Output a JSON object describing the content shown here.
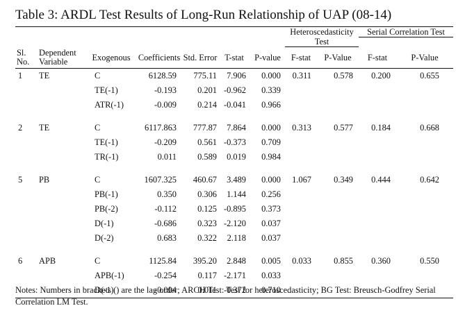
{
  "title": "Table 3: ARDL Test Results of Long-Run Relationship of UAP (08-14)",
  "group_headers": {
    "heteroscedasticity": "Heteroscedasticity Test",
    "serial_correlation": "Serial Correlation Test"
  },
  "columns": [
    "Sl. No.",
    "Dependent Variable",
    "Exogenous",
    "Coefficients",
    "Std. Error",
    "T-stat",
    "P-value",
    "F-stat",
    "P-Value",
    "F-stat",
    "P-Value"
  ],
  "groups": [
    {
      "sl": "1",
      "dependent": "TE",
      "rows": [
        {
          "exo": "C",
          "coef": "6128.59",
          "se": "775.11",
          "t": "7.906",
          "p": "0.000",
          "f1": "0.311",
          "p1": "0.578",
          "f2": "0.200",
          "p2": "0.655"
        },
        {
          "exo": "TE(-1)",
          "coef": "-0.193",
          "se": "0.201",
          "t": "-0.962",
          "p": "0.339"
        },
        {
          "exo": "ATR(-1)",
          "coef": "-0.009",
          "se": "0.214",
          "t": "-0.041",
          "p": "0.966"
        }
      ]
    },
    {
      "sl": "2",
      "dependent": "TE",
      "rows": [
        {
          "exo": "C",
          "coef": "6117.863",
          "se": "777.87",
          "t": "7.864",
          "p": "0.000",
          "f1": "0.313",
          "p1": "0.577",
          "f2": "0.184",
          "p2": "0.668"
        },
        {
          "exo": "TE(-1)",
          "coef": "-0.209",
          "se": "0.561",
          "t": "-0.373",
          "p": "0.709"
        },
        {
          "exo": "TR(-1)",
          "coef": "0.011",
          "se": "0.589",
          "t": "0.019",
          "p": "0.984"
        }
      ]
    },
    {
      "sl": "5",
      "dependent": "PB",
      "rows": [
        {
          "exo": "C",
          "coef": "1607.325",
          "se": "460.67",
          "t": "3.489",
          "p": "0.000",
          "f1": "1.067",
          "p1": "0.349",
          "f2": "0.444",
          "p2": "0.642"
        },
        {
          "exo": "PB(-1)",
          "coef": "0.350",
          "se": "0.306",
          "t": "1.144",
          "p": "0.256"
        },
        {
          "exo": "PB(-2)",
          "coef": "-0.112",
          "se": "0.125",
          "t": "-0.895",
          "p": "0.373"
        },
        {
          "exo": "D(-1)",
          "coef": "-0.686",
          "se": "0.323",
          "t": "-2.120",
          "p": "0.037"
        },
        {
          "exo": "D(-2)",
          "coef": "0.683",
          "se": "0.322",
          "t": "2.118",
          "p": "0.037"
        }
      ]
    },
    {
      "sl": "6",
      "dependent": "APB",
      "rows": [
        {
          "exo": "C",
          "coef": "1125.84",
          "se": "395.20",
          "t": "2.848",
          "p": "0.005",
          "f1": "0.033",
          "p1": "0.855",
          "f2": "0.360",
          "p2": "0.550"
        },
        {
          "exo": "APB(-1)",
          "coef": "-0.254",
          "se": "0.117",
          "t": "-2.171",
          "p": "0.033"
        },
        {
          "exo": "D(-1)",
          "coef": "-0.004",
          "se": "0.011",
          "t": "-0.372",
          "p": "0.710"
        }
      ]
    }
  ],
  "notes": "Notes: Numbers in brackets () are the lag order; ARCH Test: Test for heteroscedasticity; BG Test: Breusch-Godfrey Serial Correlation LM Test."
}
